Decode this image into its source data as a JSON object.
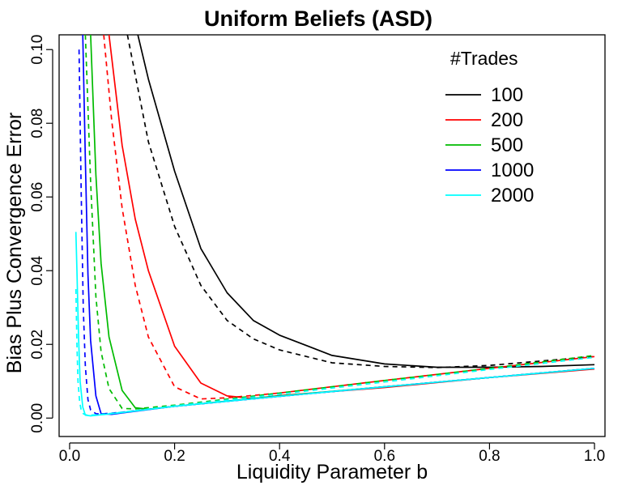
{
  "chart_data": {
    "type": "line",
    "title": "Uniform Beliefs (ASD)",
    "xlabel": "Liquidity Parameter b",
    "ylabel": "Bias Plus Convergence Error",
    "xlim": [
      -0.02,
      1.02
    ],
    "ylim": [
      -0.005,
      0.104
    ],
    "x_ticks": [
      0.0,
      0.2,
      0.4,
      0.6,
      0.8,
      1.0
    ],
    "x_tick_labels": [
      "0.0",
      "0.2",
      "0.4",
      "0.6",
      "0.8",
      "1.0"
    ],
    "y_ticks": [
      0.0,
      0.02,
      0.04,
      0.06,
      0.08,
      0.1
    ],
    "y_tick_labels": [
      "0.00",
      "0.02",
      "0.04",
      "0.06",
      "0.08",
      "0.10"
    ],
    "grid": false,
    "legend": {
      "title": "#Trades",
      "position": "top-right",
      "entries": [
        {
          "label": "100",
          "color": "#000000"
        },
        {
          "label": "200",
          "color": "#ff0000"
        },
        {
          "label": "500",
          "color": "#00bb00"
        },
        {
          "label": "1000",
          "color": "#0000ff"
        },
        {
          "label": "2000",
          "color": "#00ffff"
        }
      ]
    },
    "series": [
      {
        "name": "100",
        "style": "solid",
        "color": "#000000",
        "x": [
          0.13,
          0.15,
          0.2,
          0.25,
          0.3,
          0.35,
          0.4,
          0.5,
          0.6,
          0.7,
          0.8,
          0.9,
          1.0
        ],
        "y": [
          0.104,
          0.092,
          0.067,
          0.046,
          0.034,
          0.0265,
          0.0225,
          0.017,
          0.0147,
          0.0138,
          0.0138,
          0.014,
          0.0145
        ]
      },
      {
        "name": "100",
        "style": "dashed",
        "color": "#000000",
        "x": [
          0.11,
          0.15,
          0.2,
          0.25,
          0.3,
          0.35,
          0.4,
          0.5,
          0.6,
          0.7,
          0.8,
          0.9,
          1.0
        ],
        "y": [
          0.104,
          0.075,
          0.052,
          0.036,
          0.0265,
          0.0215,
          0.0185,
          0.015,
          0.014,
          0.0137,
          0.0143,
          0.0155,
          0.0167
        ]
      },
      {
        "name": "200",
        "style": "solid",
        "color": "#ff0000",
        "x": [
          0.075,
          0.1,
          0.125,
          0.15,
          0.2,
          0.25,
          0.3,
          0.35,
          0.4,
          0.6,
          0.8,
          1.0
        ],
        "y": [
          0.104,
          0.074,
          0.054,
          0.04,
          0.0195,
          0.0095,
          0.006,
          0.0053,
          0.0061,
          0.0083,
          0.011,
          0.0133
        ]
      },
      {
        "name": "200",
        "style": "dashed",
        "color": "#ff0000",
        "x": [
          0.065,
          0.08,
          0.1,
          0.125,
          0.15,
          0.2,
          0.25,
          0.3,
          0.4,
          0.6,
          0.8,
          1.0
        ],
        "y": [
          0.104,
          0.081,
          0.057,
          0.036,
          0.022,
          0.0085,
          0.0052,
          0.0055,
          0.0068,
          0.0102,
          0.0135,
          0.0167
        ]
      },
      {
        "name": "500",
        "style": "solid",
        "color": "#00bb00",
        "x": [
          0.04,
          0.05,
          0.06,
          0.075,
          0.1,
          0.125,
          0.15,
          0.2,
          0.4,
          0.6,
          0.8,
          1.0
        ],
        "y": [
          0.104,
          0.066,
          0.042,
          0.022,
          0.0075,
          0.0028,
          0.0024,
          0.0032,
          0.006,
          0.0085,
          0.011,
          0.0135
        ]
      },
      {
        "name": "500",
        "style": "dashed",
        "color": "#00bb00",
        "x": [
          0.03,
          0.04,
          0.05,
          0.06,
          0.075,
          0.1,
          0.125,
          0.2,
          0.4,
          0.6,
          0.8,
          1.0
        ],
        "y": [
          0.104,
          0.064,
          0.033,
          0.018,
          0.008,
          0.0026,
          0.0025,
          0.0035,
          0.0068,
          0.0102,
          0.0135,
          0.017
        ]
      },
      {
        "name": "1000",
        "style": "solid",
        "color": "#0000ff",
        "x": [
          0.025,
          0.03,
          0.035,
          0.04,
          0.05,
          0.06,
          0.08,
          0.1,
          0.2,
          0.4,
          0.6,
          0.8,
          1.0
        ],
        "y": [
          0.104,
          0.07,
          0.039,
          0.021,
          0.006,
          0.0012,
          0.001,
          0.0014,
          0.0032,
          0.0059,
          0.0085,
          0.011,
          0.0135
        ]
      },
      {
        "name": "1000",
        "style": "dashed",
        "color": "#0000ff",
        "x": [
          0.018,
          0.022,
          0.026,
          0.03,
          0.035,
          0.04,
          0.05,
          0.06,
          0.1,
          0.2,
          0.4,
          0.6,
          0.8,
          1.0
        ],
        "y": [
          0.1,
          0.062,
          0.03,
          0.014,
          0.005,
          0.0022,
          0.0012,
          0.0011,
          0.0016,
          0.0032,
          0.0059,
          0.0085,
          0.011,
          0.0135
        ]
      },
      {
        "name": "2000",
        "style": "solid",
        "color": "#00ffff",
        "x": [
          0.012,
          0.014,
          0.017,
          0.02,
          0.025,
          0.03,
          0.04,
          0.06,
          0.1,
          0.2,
          0.4,
          0.6,
          0.8,
          1.0
        ],
        "y": [
          0.0505,
          0.04,
          0.022,
          0.01,
          0.003,
          0.0008,
          0.0006,
          0.0009,
          0.0015,
          0.0032,
          0.0059,
          0.0085,
          0.011,
          0.0135
        ]
      },
      {
        "name": "2000",
        "style": "dashed",
        "color": "#00ffff",
        "x": [
          0.012,
          0.014,
          0.016,
          0.019,
          0.022,
          0.026,
          0.03,
          0.04,
          0.06,
          0.1,
          0.2,
          0.4,
          0.6,
          0.8,
          1.0
        ],
        "y": [
          0.035,
          0.02,
          0.01,
          0.0045,
          0.0022,
          0.0012,
          0.0009,
          0.0008,
          0.001,
          0.0016,
          0.0033,
          0.0065,
          0.0098,
          0.0132,
          0.0165
        ]
      }
    ]
  }
}
